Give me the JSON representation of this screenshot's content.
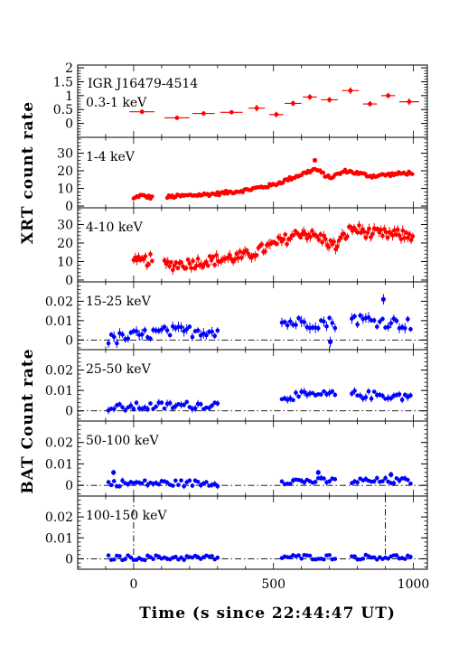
{
  "chart_data": {
    "type": "scatter",
    "source_name": "IGR J16479-4514",
    "xlabel": "Time (s since 22:44:47 UT)",
    "xlim": [
      -200,
      1050
    ],
    "x_ticks": [
      "0",
      "500",
      "1000"
    ],
    "grid": false,
    "group_labels": {
      "xrt": "XRT count rate",
      "bat": "BAT Count rate"
    },
    "colors": {
      "xrt": "#ff0000",
      "bat": "#0000ff",
      "axes": "#000000"
    },
    "panels": [
      {
        "id": "p1",
        "instrument": "XRT",
        "band": "0.3-1 keV",
        "ylim": [
          -0.5,
          2.1
        ],
        "ticks": [
          "0",
          "0.5",
          "1",
          "1.5",
          "2"
        ],
        "tick_values": [
          0,
          0.5,
          1,
          1.5,
          2
        ],
        "series": [
          {
            "points": [
              [
                30,
                0.42,
                45,
                0.08
              ],
              [
                155,
                0.2,
                45,
                0.06
              ],
              [
                250,
                0.36,
                40,
                0.06
              ],
              [
                350,
                0.4,
                40,
                0.06
              ],
              [
                440,
                0.55,
                30,
                0.12
              ],
              [
                510,
                0.32,
                25,
                0.1
              ],
              [
                570,
                0.72,
                30,
                0.1
              ],
              [
                630,
                0.95,
                25,
                0.1
              ],
              [
                700,
                0.85,
                30,
                0.1
              ],
              [
                775,
                1.18,
                30,
                0.12
              ],
              [
                845,
                0.7,
                25,
                0.1
              ],
              [
                910,
                1.0,
                25,
                0.1
              ],
              [
                985,
                0.78,
                35,
                0.12
              ]
            ]
          }
        ]
      },
      {
        "id": "p2",
        "instrument": "XRT",
        "band": "1-4 keV",
        "ylim": [
          -1,
          39
        ],
        "ticks": [
          "0",
          "10",
          "20",
          "30"
        ],
        "tick_values": [
          0,
          10,
          20,
          30
        ],
        "series": [
          {
            "profile": [
              [
                0,
                4
              ],
              [
                20,
                6
              ],
              [
                60,
                5
              ],
              [
                110,
                5
              ],
              [
                200,
                6
              ],
              [
                300,
                7
              ],
              [
                400,
                9
              ],
              [
                500,
                12
              ],
              [
                600,
                18
              ],
              [
                650,
                21
              ],
              [
                700,
                16
              ],
              [
                760,
                20
              ],
              [
                850,
                17
              ],
              [
                1000,
                19
              ]
            ],
            "segments": [
              [
                0,
                70
              ],
              [
                120,
                1000
              ]
            ],
            "step": 6,
            "jitter": 1.0,
            "points": [
              [
                648,
                26
              ]
            ]
          }
        ]
      },
      {
        "id": "p3",
        "instrument": "XRT",
        "band": "4-10 keV",
        "ylim": [
          -1,
          39
        ],
        "ticks": [
          "0",
          "10",
          "20",
          "30"
        ],
        "tick_values": [
          0,
          10,
          20,
          30
        ],
        "series": [
          {
            "profile": [
              [
                0,
                9
              ],
              [
                60,
                11
              ],
              [
                110,
                8
              ],
              [
                200,
                9
              ],
              [
                300,
                11
              ],
              [
                400,
                13
              ],
              [
                500,
                19
              ],
              [
                600,
                26
              ],
              [
                680,
                22
              ],
              [
                720,
                18
              ],
              [
                780,
                28
              ],
              [
                850,
                25
              ],
              [
                1000,
                24
              ]
            ],
            "segments": [
              [
                0,
                70
              ],
              [
                110,
                1000
              ]
            ],
            "step": 6,
            "jitter": 3.0,
            "points": []
          }
        ]
      },
      {
        "id": "p4",
        "instrument": "BAT",
        "band": "15-25 keV",
        "ylim": [
          -0.005,
          0.03
        ],
        "ticks": [
          "0",
          "0.01",
          "0.02"
        ],
        "tick_values": [
          0,
          0.01,
          0.02
        ],
        "series": [
          {
            "profile": [
              [
                -90,
                0.0
              ],
              [
                0,
                0.002
              ],
              [
                100,
                0.004
              ],
              [
                300,
                0.005
              ],
              [
                530,
                0.009
              ],
              [
                720,
                0.009
              ],
              [
                780,
                0.011
              ],
              [
                1000,
                0.008
              ]
            ],
            "segments": [
              [
                -90,
                300
              ],
              [
                530,
                720
              ],
              [
                780,
                990
              ]
            ],
            "step": 10,
            "jitter": 0.003,
            "points": [
              [
                703,
                -0.001
              ],
              [
                893,
                0.021
              ]
            ]
          }
        ]
      },
      {
        "id": "p5",
        "instrument": "BAT",
        "band": "25-50 keV",
        "ylim": [
          -0.005,
          0.03
        ],
        "ticks": [
          "0",
          "0.01",
          "0.02"
        ],
        "tick_values": [
          0,
          0.01,
          0.02
        ],
        "series": [
          {
            "profile": [
              [
                -90,
                0.001
              ],
              [
                0,
                0.002
              ],
              [
                300,
                0.003
              ],
              [
                530,
                0.007
              ],
              [
                720,
                0.008
              ],
              [
                780,
                0.008
              ],
              [
                1000,
                0.007
              ]
            ],
            "segments": [
              [
                -90,
                300
              ],
              [
                530,
                720
              ],
              [
                780,
                990
              ]
            ],
            "step": 10,
            "jitter": 0.002,
            "points": []
          }
        ]
      },
      {
        "id": "p6",
        "instrument": "BAT",
        "band": "50-100 keV",
        "ylim": [
          -0.005,
          0.03
        ],
        "ticks": [
          "0",
          "0.01",
          "0.02"
        ],
        "tick_values": [
          0,
          0.01,
          0.02
        ],
        "series": [
          {
            "profile": [
              [
                -90,
                0.001
              ],
              [
                300,
                0.001
              ],
              [
                530,
                0.002
              ],
              [
                1000,
                0.002
              ]
            ],
            "segments": [
              [
                -90,
                300
              ],
              [
                530,
                720
              ],
              [
                780,
                990
              ]
            ],
            "step": 10,
            "jitter": 0.0015,
            "points": [
              [
                -72,
                0.006
              ],
              [
                660,
                0.006
              ],
              [
                920,
                0.005
              ]
            ]
          }
        ]
      },
      {
        "id": "p7",
        "instrument": "BAT",
        "band": "100-150 keV",
        "ylim": [
          -0.005,
          0.03
        ],
        "ticks": [
          "0",
          "0.01",
          "0.02"
        ],
        "tick_values": [
          0,
          0.01,
          0.02
        ],
        "series": [
          {
            "profile": [
              [
                -90,
                0.0005
              ],
              [
                300,
                0.0005
              ],
              [
                530,
                0.0008
              ],
              [
                1000,
                0.0008
              ]
            ],
            "segments": [
              [
                -90,
                300
              ],
              [
                530,
                720
              ],
              [
                780,
                990
              ]
            ],
            "step": 10,
            "jitter": 0.0012,
            "points": []
          }
        ]
      }
    ],
    "reference_lines": {
      "zero_line": "dash-dot",
      "vertical_markers": [
        0,
        900
      ]
    }
  }
}
